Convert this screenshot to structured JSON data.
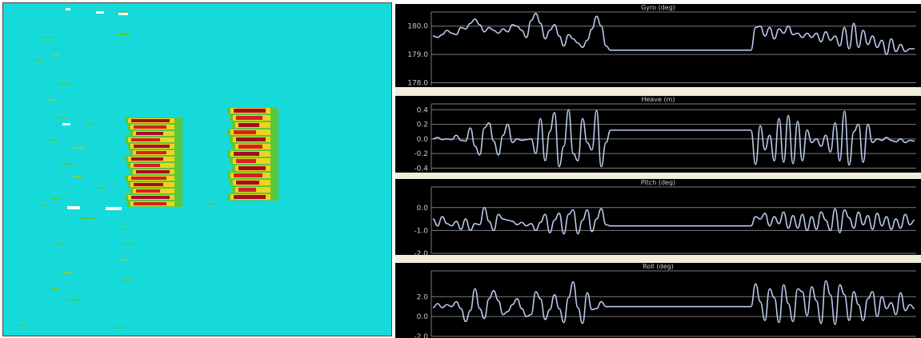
{
  "colors": {
    "echogram_background": "#16dada",
    "signal_strong": "#a50d22",
    "signal_mid": "#d62020",
    "signal_low": "#f0d21e",
    "signal_weak": "#5ac83c",
    "plot_background": "#000000",
    "plot_line": "#b9c9ea",
    "plot_grid": "#7a7a7a",
    "divider": "#f2ecdc"
  },
  "chart_data": [
    {
      "type": "heatmap",
      "title": "",
      "xlabel": "",
      "ylabel": "",
      "background": "cyan",
      "description_of_marks": "two blocks of stacked horizontal return bands",
      "blocks": [
        {
          "name": "",
          "rows": 14
        },
        {
          "name": "",
          "rows": 13
        }
      ]
    },
    {
      "type": "line",
      "title": "Gyro (deg)",
      "yticks": [
        "180.0",
        "179.0",
        "178.0"
      ],
      "ylim": [
        177.9,
        180.5
      ],
      "series": [
        {
          "name": "",
          "values": [
            179.65,
            179.6,
            179.7,
            179.85,
            179.75,
            179.7,
            179.95,
            179.9,
            180.1,
            180.25,
            180.05,
            179.8,
            179.95,
            179.85,
            179.75,
            179.9,
            179.8,
            180.05,
            180.0,
            179.85,
            179.6,
            180.2,
            180.45,
            180.1,
            179.55,
            179.85,
            180.05,
            179.65,
            179.3,
            179.7,
            179.55,
            179.4,
            179.25,
            179.5,
            179.9,
            180.35,
            180.0,
            179.3,
            179.15,
            179.15,
            179.15,
            179.15,
            179.15,
            179.15,
            179.15,
            179.15,
            179.15,
            179.15,
            179.15,
            179.15,
            179.15,
            179.15,
            179.15,
            179.15,
            179.15,
            179.15,
            179.15,
            179.15,
            179.15,
            179.15,
            179.15,
            179.15,
            179.15,
            179.15,
            179.15,
            179.15,
            179.15,
            179.15,
            179.15,
            179.95,
            180.0,
            179.65,
            179.95,
            179.55,
            179.9,
            179.75,
            180.0,
            179.7,
            179.75,
            179.6,
            179.75,
            179.6,
            179.75,
            179.45,
            179.8,
            179.5,
            179.65,
            179.3,
            179.95,
            179.2,
            180.1,
            179.25,
            179.85,
            179.35,
            179.65,
            179.25,
            179.5,
            179.0,
            179.55,
            179.1,
            179.35,
            179.1,
            179.2,
            179.2
          ]
        }
      ]
    },
    {
      "type": "line",
      "title": "Heave (m)",
      "yticks": [
        "0.4",
        "0.2",
        "0.0",
        "-0.2",
        "-0.4"
      ],
      "ylim": [
        -0.44,
        0.48
      ],
      "series": [
        {
          "name": "",
          "values": [
            0.0,
            0.02,
            -0.01,
            0.0,
            -0.01,
            0.05,
            -0.02,
            -0.03,
            0.15,
            -0.1,
            -0.22,
            0.15,
            0.22,
            -0.03,
            -0.22,
            0.05,
            0.2,
            -0.05,
            0.0,
            -0.02,
            -0.01,
            0.0,
            -0.2,
            0.28,
            -0.3,
            0.1,
            0.36,
            -0.38,
            -0.1,
            0.4,
            -0.2,
            -0.3,
            0.28,
            -0.05,
            -0.15,
            0.39,
            -0.38,
            -0.05,
            0.12,
            0.12,
            0.12,
            0.12,
            0.12,
            0.12,
            0.12,
            0.12,
            0.12,
            0.12,
            0.12,
            0.12,
            0.12,
            0.12,
            0.12,
            0.12,
            0.12,
            0.12,
            0.12,
            0.12,
            0.12,
            0.12,
            0.12,
            0.12,
            0.12,
            0.12,
            0.12,
            0.12,
            0.12,
            0.12,
            0.12,
            -0.35,
            0.18,
            -0.15,
            0.05,
            -0.3,
            0.28,
            -0.32,
            0.32,
            -0.34,
            0.24,
            -0.3,
            0.12,
            -0.05,
            0.0,
            -0.1,
            0.05,
            -0.18,
            0.22,
            -0.3,
            0.38,
            -0.36,
            0.1,
            0.2,
            -0.32,
            0.2,
            -0.05,
            0.0,
            -0.02,
            0.02,
            -0.02,
            -0.04,
            0.0,
            -0.05,
            -0.02,
            -0.03
          ]
        }
      ]
    },
    {
      "type": "line",
      "title": "Pitch (deg)",
      "yticks": [
        "0.0",
        "-1.0",
        "-2.0"
      ],
      "ylim": [
        -2.0,
        0.9
      ],
      "series": [
        {
          "name": "",
          "values": [
            -0.5,
            -0.8,
            -0.4,
            -0.7,
            -0.8,
            -0.6,
            -0.95,
            -0.5,
            -1.0,
            -0.7,
            -0.75,
            0.0,
            -0.6,
            -1.0,
            -0.3,
            -0.5,
            -0.55,
            -0.6,
            -0.75,
            -0.65,
            -0.8,
            -0.7,
            -1.0,
            -0.65,
            -0.3,
            -1.1,
            -0.55,
            -0.25,
            -1.15,
            -0.3,
            -0.1,
            -1.15,
            -0.55,
            -0.1,
            -1.05,
            -0.5,
            -0.05,
            -0.75,
            -0.8,
            -0.8,
            -0.8,
            -0.8,
            -0.8,
            -0.8,
            -0.8,
            -0.8,
            -0.8,
            -0.8,
            -0.8,
            -0.8,
            -0.8,
            -0.8,
            -0.8,
            -0.8,
            -0.8,
            -0.8,
            -0.8,
            -0.8,
            -0.8,
            -0.8,
            -0.8,
            -0.8,
            -0.8,
            -0.8,
            -0.8,
            -0.8,
            -0.8,
            -0.8,
            -0.8,
            -0.4,
            -0.5,
            -0.25,
            -0.8,
            -0.4,
            -0.7,
            -0.2,
            -0.9,
            -0.35,
            -0.9,
            -0.3,
            -1.0,
            -0.4,
            -0.95,
            -0.2,
            -0.55,
            -1.0,
            -0.05,
            -1.1,
            -0.1,
            -0.45,
            -0.9,
            -0.2,
            -0.75,
            -0.35,
            -0.95,
            -0.25,
            -0.8,
            -0.4,
            -0.95,
            -0.5,
            -0.9,
            -0.3,
            -0.75,
            -0.55
          ]
        }
      ]
    },
    {
      "type": "line",
      "title": "Roll (deg)",
      "yticks": [
        "2.0",
        "0.0",
        "-2.0"
      ],
      "ylim": [
        -2.0,
        4.6
      ],
      "series": [
        {
          "name": "",
          "values": [
            0.9,
            1.3,
            0.9,
            1.2,
            1.0,
            1.5,
            0.8,
            -0.5,
            0.6,
            2.8,
            0.8,
            -0.2,
            1.8,
            2.6,
            1.6,
            0.2,
            0.5,
            1.2,
            1.8,
            0.8,
            0.0,
            0.2,
            2.5,
            1.8,
            -0.3,
            0.7,
            2.2,
            0.8,
            -0.6,
            1.9,
            3.5,
            0.9,
            -0.7,
            2.4,
            0.7,
            0.8,
            1.5,
            1.0,
            1.0,
            1.0,
            1.0,
            1.0,
            1.0,
            1.0,
            1.0,
            1.0,
            1.0,
            1.0,
            1.0,
            1.0,
            1.0,
            1.0,
            1.0,
            1.0,
            1.0,
            1.0,
            1.0,
            1.0,
            1.0,
            1.0,
            1.0,
            1.0,
            1.0,
            1.0,
            1.0,
            1.0,
            1.0,
            1.0,
            1.0,
            3.3,
            1.5,
            -0.4,
            2.8,
            1.9,
            -0.6,
            3.2,
            1.3,
            -0.5,
            2.8,
            2.5,
            0.1,
            3.0,
            1.6,
            -0.7,
            3.6,
            2.2,
            -0.8,
            3.2,
            2.2,
            -0.4,
            2.5,
            1.2,
            -0.4,
            1.8,
            2.5,
            0.0,
            2.0,
            0.8,
            1.4,
            0.2,
            2.4,
            0.6,
            1.2,
            0.8
          ]
        }
      ]
    }
  ]
}
